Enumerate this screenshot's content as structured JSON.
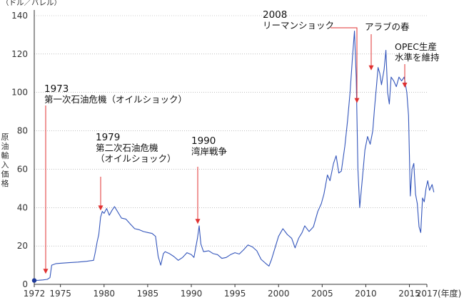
{
  "chart_data": {
    "type": "line",
    "title": "",
    "unit_label": "（ドル／バレル）",
    "xlabel": "",
    "ylabel": "原油輸入価格",
    "x_unit_suffix": "(年度)",
    "xlim": [
      1972,
      2017
    ],
    "ylim": [
      0,
      140
    ],
    "grid": true,
    "x_ticks": [
      "1972",
      "1975",
      "1980",
      "1985",
      "1990",
      "1995",
      "2000",
      "2005",
      "2010",
      "2015",
      "2017"
    ],
    "y_ticks": [
      "0",
      "20",
      "40",
      "60",
      "80",
      "100",
      "120",
      "140"
    ],
    "series": [
      {
        "name": "",
        "color": "#3355bb",
        "points": [
          [
            1972.0,
            2.0
          ],
          [
            1972.5,
            2.1
          ],
          [
            1973.0,
            2.3
          ],
          [
            1973.5,
            2.6
          ],
          [
            1973.8,
            3.5
          ],
          [
            1974.0,
            10.0
          ],
          [
            1974.5,
            10.8
          ],
          [
            1975.0,
            11.0
          ],
          [
            1976.0,
            11.3
          ],
          [
            1977.0,
            11.6
          ],
          [
            1978.0,
            12.0
          ],
          [
            1978.8,
            12.5
          ],
          [
            1979.0,
            17.0
          ],
          [
            1979.2,
            22.0
          ],
          [
            1979.4,
            26.0
          ],
          [
            1979.6,
            35.0
          ],
          [
            1979.8,
            38.0
          ],
          [
            1980.0,
            37.0
          ],
          [
            1980.3,
            39.5
          ],
          [
            1980.6,
            36.0
          ],
          [
            1980.9,
            38.5
          ],
          [
            1981.2,
            40.5
          ],
          [
            1981.6,
            37.5
          ],
          [
            1982.0,
            34.5
          ],
          [
            1982.5,
            34.0
          ],
          [
            1983.0,
            31.5
          ],
          [
            1983.5,
            29.0
          ],
          [
            1984.0,
            28.5
          ],
          [
            1984.5,
            27.5
          ],
          [
            1985.0,
            27.0
          ],
          [
            1985.5,
            26.5
          ],
          [
            1985.9,
            25.0
          ],
          [
            1986.2,
            14.5
          ],
          [
            1986.5,
            10.0
          ],
          [
            1986.8,
            16.0
          ],
          [
            1987.0,
            17.0
          ],
          [
            1987.5,
            16.0
          ],
          [
            1988.0,
            14.5
          ],
          [
            1988.5,
            12.5
          ],
          [
            1989.0,
            14.0
          ],
          [
            1989.5,
            16.5
          ],
          [
            1990.0,
            15.5
          ],
          [
            1990.3,
            14.0
          ],
          [
            1990.7,
            24.0
          ],
          [
            1990.9,
            30.5
          ],
          [
            1991.1,
            21.0
          ],
          [
            1991.4,
            17.0
          ],
          [
            1992.0,
            17.5
          ],
          [
            1992.5,
            16.0
          ],
          [
            1993.0,
            15.5
          ],
          [
            1993.5,
            13.5
          ],
          [
            1994.0,
            14.0
          ],
          [
            1994.5,
            15.5
          ],
          [
            1995.0,
            16.5
          ],
          [
            1995.5,
            15.8
          ],
          [
            1996.0,
            18.0
          ],
          [
            1996.5,
            20.5
          ],
          [
            1997.0,
            19.5
          ],
          [
            1997.5,
            17.5
          ],
          [
            1998.0,
            13.0
          ],
          [
            1998.5,
            11.0
          ],
          [
            1998.9,
            9.5
          ],
          [
            1999.2,
            13.0
          ],
          [
            1999.6,
            19.0
          ],
          [
            2000.0,
            25.0
          ],
          [
            2000.5,
            29.0
          ],
          [
            2001.0,
            26.0
          ],
          [
            2001.5,
            24.0
          ],
          [
            2001.9,
            19.0
          ],
          [
            2002.3,
            24.0
          ],
          [
            2002.7,
            27.0
          ],
          [
            2003.0,
            30.5
          ],
          [
            2003.5,
            27.5
          ],
          [
            2004.0,
            30.0
          ],
          [
            2004.5,
            38.0
          ],
          [
            2004.9,
            42.0
          ],
          [
            2005.2,
            47.0
          ],
          [
            2005.6,
            57.0
          ],
          [
            2005.9,
            54.0
          ],
          [
            2006.3,
            63.0
          ],
          [
            2006.6,
            67.0
          ],
          [
            2006.9,
            58.0
          ],
          [
            2007.2,
            59.0
          ],
          [
            2007.6,
            72.0
          ],
          [
            2007.9,
            85.0
          ],
          [
            2008.2,
            100.0
          ],
          [
            2008.5,
            120.0
          ],
          [
            2008.7,
            132.0
          ],
          [
            2008.9,
            108.0
          ],
          [
            2009.1,
            60.0
          ],
          [
            2009.3,
            40.0
          ],
          [
            2009.6,
            55.0
          ],
          [
            2009.9,
            70.0
          ],
          [
            2010.2,
            77.0
          ],
          [
            2010.5,
            73.0
          ],
          [
            2010.8,
            80.0
          ],
          [
            2011.0,
            92.0
          ],
          [
            2011.2,
            102.0
          ],
          [
            2011.4,
            113.0
          ],
          [
            2011.6,
            110.0
          ],
          [
            2011.8,
            104.0
          ],
          [
            2012.1,
            112.0
          ],
          [
            2012.3,
            122.0
          ],
          [
            2012.5,
            100.0
          ],
          [
            2012.7,
            94.0
          ],
          [
            2012.9,
            108.0
          ],
          [
            2013.2,
            106.0
          ],
          [
            2013.5,
            103.0
          ],
          [
            2013.8,
            108.0
          ],
          [
            2014.1,
            106.0
          ],
          [
            2014.4,
            108.0
          ],
          [
            2014.7,
            100.0
          ],
          [
            2014.9,
            88.0
          ],
          [
            2015.1,
            46.0
          ],
          [
            2015.3,
            60.0
          ],
          [
            2015.5,
            63.0
          ],
          [
            2015.7,
            47.0
          ],
          [
            2015.9,
            42.0
          ],
          [
            2016.1,
            30.0
          ],
          [
            2016.3,
            27.0
          ],
          [
            2016.5,
            45.0
          ],
          [
            2016.7,
            43.0
          ],
          [
            2016.9,
            50.0
          ],
          [
            2017.1,
            54.0
          ],
          [
            2017.3,
            49.0
          ],
          [
            2017.6,
            52.0
          ],
          [
            2017.8,
            48.0
          ]
        ]
      }
    ],
    "annotations": [
      {
        "id": "oil-shock-1",
        "lines": [
          "1973",
          "第一次石油危機（オイルショック）"
        ],
        "x": 1973.0,
        "y_tip": 4
      },
      {
        "id": "oil-shock-2",
        "lines": [
          "1979",
          "第二次石油危機",
          "（オイルショック）"
        ],
        "x": 1979.5,
        "y_tip": 37
      },
      {
        "id": "gulf-war",
        "lines": [
          "1990",
          "湾岸戦争"
        ],
        "x": 1990.8,
        "y_tip": 30
      },
      {
        "id": "lehman-shock",
        "lines": [
          "2008",
          "リーマンショック"
        ],
        "x": 2009.3,
        "y_tip": 93
      },
      {
        "id": "arab-spring",
        "lines": [
          "アラブの春"
        ],
        "x": 2010.9,
        "y_tip": 110
      },
      {
        "id": "opec",
        "lines": [
          "OPEC生産",
          "水準を維持"
        ],
        "x": 2014.8,
        "y_tip": 101
      }
    ],
    "start_marker": {
      "x": 1972.0,
      "y": 2.0,
      "color": "#1f3a9a"
    },
    "annotation_arrow_color": "#e03030"
  }
}
